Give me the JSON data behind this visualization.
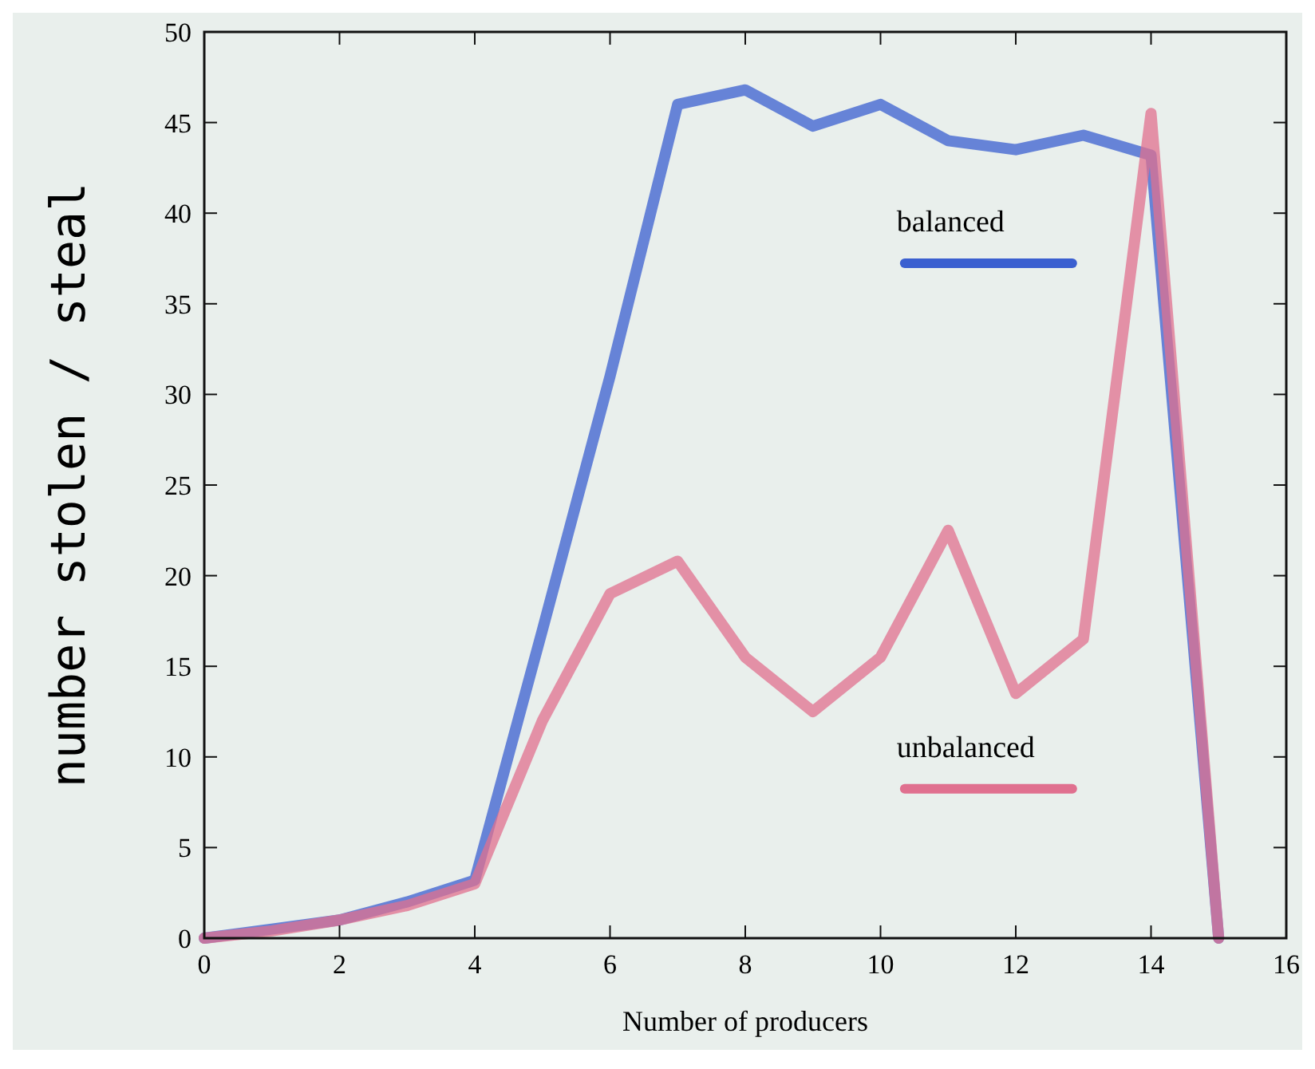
{
  "chart_data": {
    "type": "line",
    "xlabel": "Number of producers",
    "ylabel": "number stolen / steal",
    "x": [
      0,
      1,
      2,
      3,
      4,
      5,
      6,
      7,
      8,
      9,
      10,
      11,
      12,
      13,
      14,
      15
    ],
    "series": [
      {
        "name": "balanced",
        "color": "#3a5fd0",
        "values": [
          0,
          0.5,
          1,
          2,
          3.2,
          17,
          31,
          46,
          46.8,
          44.8,
          46,
          44,
          43.5,
          44.3,
          43.2,
          0
        ]
      },
      {
        "name": "unbalanced",
        "color": "#e0708f",
        "values": [
          0,
          0.4,
          1,
          1.8,
          3,
          12,
          19,
          20.8,
          15.5,
          12.5,
          15.5,
          22.5,
          13.5,
          16.5,
          45.5,
          0
        ]
      }
    ],
    "xlim": [
      0,
      16
    ],
    "xticks": [
      0,
      2,
      4,
      6,
      8,
      10,
      12,
      14,
      16
    ],
    "ylim": [
      0,
      50
    ],
    "yticks": [
      0,
      5,
      10,
      15,
      20,
      25,
      30,
      35,
      40,
      45,
      50
    ],
    "grid": false,
    "legend": "center",
    "marker": "none",
    "line_style": "solid"
  }
}
